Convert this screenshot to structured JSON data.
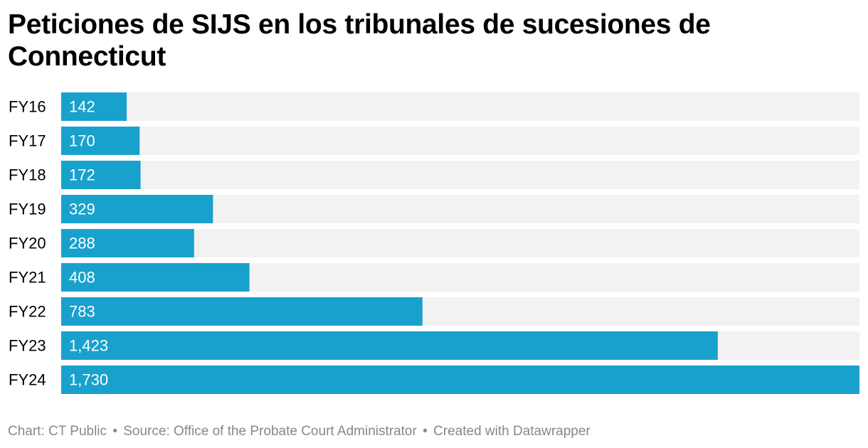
{
  "chart_data": {
    "type": "bar",
    "orientation": "horizontal",
    "title": "Peticiones de SIJS en los tribunales de sucesiones de Connecticut",
    "categories": [
      "FY16",
      "FY17",
      "FY18",
      "FY19",
      "FY20",
      "FY21",
      "FY22",
      "FY23",
      "FY24"
    ],
    "values": [
      142,
      170,
      172,
      329,
      288,
      408,
      783,
      1423,
      1730
    ],
    "value_labels": [
      "142",
      "170",
      "172",
      "329",
      "288",
      "408",
      "783",
      "1,423",
      "1,730"
    ],
    "xlim": [
      0,
      1730
    ],
    "xlabel": "",
    "ylabel": "",
    "grid": false,
    "legend": "none"
  },
  "colors": {
    "bar": "#18a1cd",
    "track": "#f2f2f2",
    "value_label": "#ffffff",
    "category_label": "#000000",
    "footer": "#888888"
  },
  "footer": {
    "chart_credit": "Chart: CT Public",
    "source": "Source: Office of the Probate Court Administrator",
    "created_with": "Created with Datawrapper",
    "separator": "•"
  }
}
